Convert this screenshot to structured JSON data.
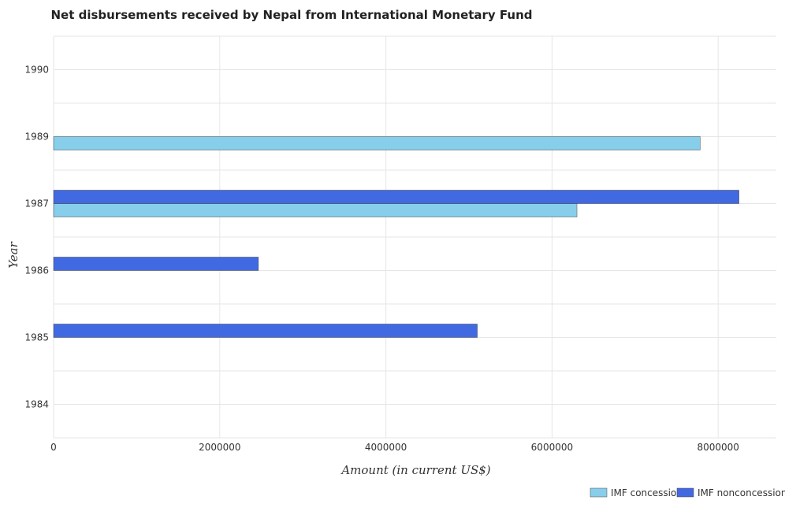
{
  "chart_data": {
    "type": "bar",
    "orientation": "horizontal",
    "title": "Net disbursements received by Nepal from International Monetary Fund",
    "xlabel": "Amount (in current US$)",
    "ylabel": "Year",
    "categories": [
      "1984",
      "1985",
      "1986",
      "1987",
      "1989",
      "1990"
    ],
    "series": [
      {
        "name": "IMF concessional",
        "color": "#87ceeb",
        "values": [
          0,
          0,
          0,
          6300000,
          7783000,
          0
        ]
      },
      {
        "name": "IMF nonconcessional",
        "color": "#4169e1",
        "values": [
          0,
          5100000,
          2465000,
          8250000,
          0,
          0
        ]
      }
    ],
    "xlim": [
      0,
      8700000
    ],
    "xticks": [
      0,
      2000000,
      4000000,
      6000000,
      8000000
    ],
    "xtick_labels": [
      "0",
      "2000000",
      "4000000",
      "6000000",
      "8000000"
    ],
    "grid": true,
    "legend": "bottom-right"
  }
}
